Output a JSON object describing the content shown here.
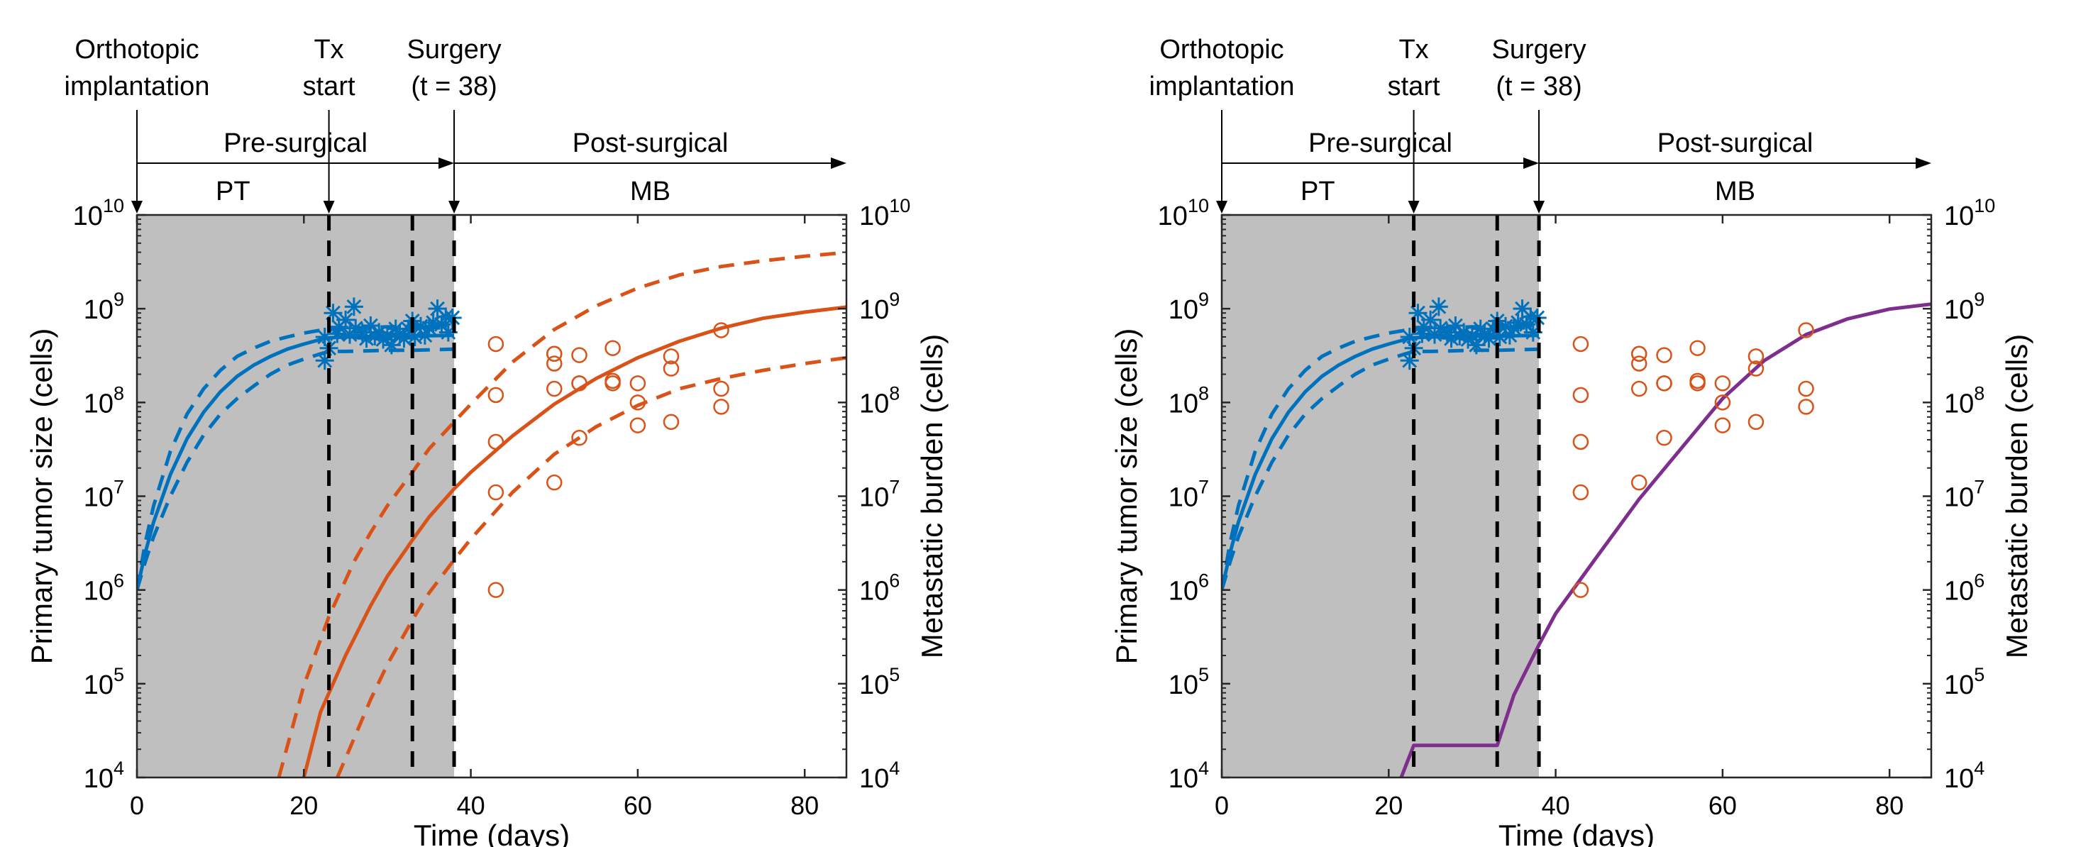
{
  "chart_data": [
    {
      "type": "line",
      "xlabel": "Time (days)",
      "ylabel_left": "Primary tumor size (cells)",
      "ylabel_right": "Metastatic burden (cells)",
      "xlim": [
        0,
        85
      ],
      "ylim": [
        10000,
        10000000000
      ],
      "yscale": "log",
      "xticks": [
        0,
        20,
        40,
        60,
        80
      ],
      "ytick_exponents": [
        4,
        5,
        6,
        7,
        8,
        9,
        10
      ],
      "shaded_region": [
        0,
        38
      ],
      "vlines": [
        23,
        33,
        38
      ],
      "timeline": {
        "events": [
          {
            "x": 0,
            "label": [
              "Orthotopic",
              "implantation"
            ]
          },
          {
            "x": 23,
            "label": [
              "Tx",
              "start"
            ]
          },
          {
            "x": 38,
            "label": [
              "Surgery",
              "(t = 38)"
            ]
          }
        ],
        "phases": [
          {
            "label": "Pre-surgical",
            "from": 0,
            "to": 38,
            "sublabel": "PT"
          },
          {
            "label": "Post-surgical",
            "from": 38,
            "to": 85,
            "sublabel": "MB"
          }
        ]
      },
      "series": [
        {
          "role": "pt-fit",
          "color": "#0072BD",
          "style": "solid",
          "x": [
            0,
            1,
            2,
            4,
            6,
            8,
            10,
            12,
            14,
            16,
            18,
            20,
            22,
            23,
            25,
            30,
            33,
            38
          ],
          "y": [
            1000000,
            2500000,
            5300000,
            17000000,
            41000000,
            79000000,
            130000000,
            190000000,
            250000000,
            310000000,
            370000000,
            420000000,
            470000000,
            490000000,
            500000000,
            510000000,
            510000000,
            520000000
          ]
        },
        {
          "role": "pt-upper",
          "color": "#0072BD",
          "style": "dashed",
          "x": [
            0,
            1,
            2,
            4,
            6,
            8,
            10,
            12,
            14,
            16,
            18,
            20,
            22,
            23,
            25,
            30,
            33,
            38
          ],
          "y": [
            1000000,
            3200000,
            7900000,
            30000000,
            75000000,
            140000000,
            220000000,
            310000000,
            380000000,
            450000000,
            500000000,
            550000000,
            590000000,
            600000000,
            620000000,
            640000000,
            650000000,
            660000000
          ]
        },
        {
          "role": "pt-lower",
          "color": "#0072BD",
          "style": "dashed",
          "x": [
            0,
            1,
            2,
            4,
            6,
            8,
            10,
            12,
            14,
            16,
            18,
            20,
            22,
            23,
            25,
            30,
            33,
            38
          ],
          "y": [
            1000000,
            2000000,
            3700000,
            10000000,
            23000000,
            45000000,
            75000000,
            110000000,
            150000000,
            200000000,
            250000000,
            290000000,
            330000000,
            350000000,
            350000000,
            360000000,
            360000000,
            370000000
          ]
        },
        {
          "role": "mb-fit",
          "color": "#D95319",
          "style": "solid",
          "x": [
            20,
            22,
            25,
            28,
            30,
            33,
            35,
            38,
            40,
            45,
            50,
            55,
            60,
            65,
            70,
            75,
            80,
            85
          ],
          "y": [
            10000,
            50000,
            200000,
            680000,
            1400000,
            3400000,
            6000000,
            12000000,
            18000000,
            44000000,
            96000000,
            180000000,
            300000000,
            450000000,
            620000000,
            790000000,
            920000000,
            1040000000
          ]
        },
        {
          "role": "mb-upper",
          "color": "#D95319",
          "style": "dashed",
          "x": [
            17,
            20,
            23,
            26,
            28,
            30,
            33,
            35,
            38,
            40,
            45,
            50,
            55,
            60,
            65,
            70,
            75,
            80,
            85
          ],
          "y": [
            10000,
            96000,
            520000,
            2000000,
            4100000,
            7900000,
            18000000,
            32000000,
            62000000,
            96000000,
            270000000,
            600000000,
            1070000000,
            1660000000,
            2290000000,
            2820000000,
            3240000000,
            3630000000,
            3980000000
          ]
        },
        {
          "role": "mb-lower",
          "color": "#D95319",
          "style": "dashed",
          "x": [
            24,
            25,
            28,
            30,
            33,
            35,
            38,
            40,
            45,
            50,
            55,
            60,
            65,
            70,
            75,
            80,
            85
          ],
          "y": [
            10000,
            16000,
            68000,
            160000,
            480000,
            930000,
            2100000,
            3500000,
            11000000,
            28000000,
            55000000,
            93000000,
            140000000,
            180000000,
            220000000,
            260000000,
            300000000
          ]
        }
      ],
      "pt_observed": {
        "color": "#0072BD",
        "marker": "asterisk",
        "x": [
          22.5,
          22.5,
          23,
          23.5,
          24,
          24.2,
          25,
          25.5,
          26,
          26.2,
          27,
          27.5,
          28,
          28.5,
          29,
          29.5,
          30,
          30.5,
          31,
          31.5,
          32,
          32.5,
          33,
          33.3,
          34,
          34.5,
          35,
          35.5,
          36,
          36.5,
          37,
          37.3,
          37.8
        ],
        "y": [
          280000000,
          500000000,
          380000000,
          900000000,
          540000000,
          640000000,
          760000000,
          530000000,
          1050000000,
          620000000,
          560000000,
          480000000,
          660000000,
          510000000,
          560000000,
          470000000,
          520000000,
          410000000,
          610000000,
          540000000,
          480000000,
          610000000,
          740000000,
          500000000,
          650000000,
          520000000,
          620000000,
          710000000,
          1000000000,
          680000000,
          820000000,
          560000000,
          800000000
        ]
      },
      "mb_observed": {
        "color": "#D95319",
        "marker": "circle",
        "x": [
          43,
          43,
          43,
          43,
          43,
          50,
          50,
          50,
          50,
          50,
          53,
          53,
          53,
          53,
          57,
          57,
          57,
          60,
          60,
          60,
          64,
          64,
          64,
          70,
          70,
          70
        ],
        "y": [
          420000000,
          120000000,
          38000000,
          11000000,
          1000000,
          330000000,
          260000000,
          140000000,
          14000000,
          330000000,
          320000000,
          160000000,
          42000000,
          160000000,
          380000000,
          170000000,
          160000000,
          160000000,
          100000000,
          57000000,
          310000000,
          230000000,
          62000000,
          590000000,
          140000000,
          90000000
        ]
      }
    },
    {
      "type": "line",
      "xlabel": "Time (days)",
      "ylabel_left": "Primary tumor size (cells)",
      "ylabel_right": "Metastatic burden (cells)",
      "xlim": [
        0,
        85
      ],
      "ylim": [
        10000,
        10000000000
      ],
      "yscale": "log",
      "xticks": [
        0,
        20,
        40,
        60,
        80
      ],
      "ytick_exponents": [
        4,
        5,
        6,
        7,
        8,
        9,
        10
      ],
      "shaded_region": [
        0,
        38
      ],
      "vlines": [
        23,
        33,
        38
      ],
      "timeline": {
        "events": [
          {
            "x": 0,
            "label": [
              "Orthotopic",
              "implantation"
            ]
          },
          {
            "x": 23,
            "label": [
              "Tx",
              "start"
            ]
          },
          {
            "x": 38,
            "label": [
              "Surgery",
              "(t = 38)"
            ]
          }
        ],
        "phases": [
          {
            "label": "Pre-surgical",
            "from": 0,
            "to": 38,
            "sublabel": "PT"
          },
          {
            "label": "Post-surgical",
            "from": 38,
            "to": 85,
            "sublabel": "MB"
          }
        ]
      },
      "series": [
        {
          "role": "pt-fit",
          "color": "#0072BD",
          "style": "solid",
          "x": [
            0,
            1,
            2,
            4,
            6,
            8,
            10,
            12,
            14,
            16,
            18,
            20,
            22,
            23,
            25,
            30,
            33,
            38
          ],
          "y": [
            1000000,
            2500000,
            5300000,
            17000000,
            41000000,
            79000000,
            130000000,
            190000000,
            250000000,
            310000000,
            370000000,
            420000000,
            470000000,
            490000000,
            500000000,
            510000000,
            510000000,
            520000000
          ]
        },
        {
          "role": "pt-upper",
          "color": "#0072BD",
          "style": "dashed",
          "x": [
            0,
            1,
            2,
            4,
            6,
            8,
            10,
            12,
            14,
            16,
            18,
            20,
            22,
            23,
            25,
            30,
            33,
            38
          ],
          "y": [
            1000000,
            3200000,
            7900000,
            30000000,
            75000000,
            140000000,
            220000000,
            310000000,
            380000000,
            450000000,
            500000000,
            550000000,
            590000000,
            600000000,
            620000000,
            640000000,
            650000000,
            660000000
          ]
        },
        {
          "role": "pt-lower",
          "color": "#0072BD",
          "style": "dashed",
          "x": [
            0,
            1,
            2,
            4,
            6,
            8,
            10,
            12,
            14,
            16,
            18,
            20,
            22,
            23,
            25,
            30,
            33,
            38
          ],
          "y": [
            1000000,
            2000000,
            3700000,
            10000000,
            23000000,
            45000000,
            75000000,
            110000000,
            150000000,
            200000000,
            250000000,
            290000000,
            330000000,
            350000000,
            350000000,
            360000000,
            360000000,
            370000000
          ]
        },
        {
          "role": "mb-fit",
          "color": "#7E2F8E",
          "style": "solid",
          "x": [
            21.5,
            23,
            33,
            35,
            38,
            40,
            45,
            50,
            55,
            60,
            65,
            70,
            75,
            80,
            85
          ],
          "y": [
            10000,
            22000,
            22000,
            76000,
            260000,
            560000,
            2300000,
            9300000,
            32000000,
            110000000,
            280000000,
            530000000,
            780000000,
            990000000,
            1120000000
          ]
        }
      ],
      "pt_observed": {
        "color": "#0072BD",
        "marker": "asterisk",
        "x": [
          22.5,
          22.5,
          23,
          23.5,
          24,
          24.2,
          25,
          25.5,
          26,
          26.2,
          27,
          27.5,
          28,
          28.5,
          29,
          29.5,
          30,
          30.5,
          31,
          31.5,
          32,
          32.5,
          33,
          33.3,
          34,
          34.5,
          35,
          35.5,
          36,
          36.5,
          37,
          37.3,
          37.8
        ],
        "y": [
          280000000,
          500000000,
          380000000,
          900000000,
          540000000,
          640000000,
          760000000,
          530000000,
          1050000000,
          620000000,
          560000000,
          480000000,
          660000000,
          510000000,
          560000000,
          470000000,
          520000000,
          410000000,
          610000000,
          540000000,
          480000000,
          610000000,
          740000000,
          500000000,
          650000000,
          520000000,
          620000000,
          710000000,
          1000000000,
          680000000,
          820000000,
          560000000,
          800000000
        ]
      },
      "mb_observed": {
        "color": "#D95319",
        "marker": "circle",
        "x": [
          43,
          43,
          43,
          43,
          43,
          50,
          50,
          50,
          50,
          50,
          53,
          53,
          53,
          53,
          57,
          57,
          57,
          60,
          60,
          60,
          64,
          64,
          64,
          70,
          70,
          70
        ],
        "y": [
          420000000,
          120000000,
          38000000,
          11000000,
          1000000,
          330000000,
          260000000,
          140000000,
          14000000,
          330000000,
          320000000,
          160000000,
          42000000,
          160000000,
          380000000,
          170000000,
          160000000,
          160000000,
          100000000,
          57000000,
          310000000,
          230000000,
          62000000,
          590000000,
          140000000,
          90000000
        ]
      }
    }
  ],
  "style": {
    "shade_color": "#bfbfbf",
    "vline_color": "#000000",
    "axis_color": "#262626"
  }
}
